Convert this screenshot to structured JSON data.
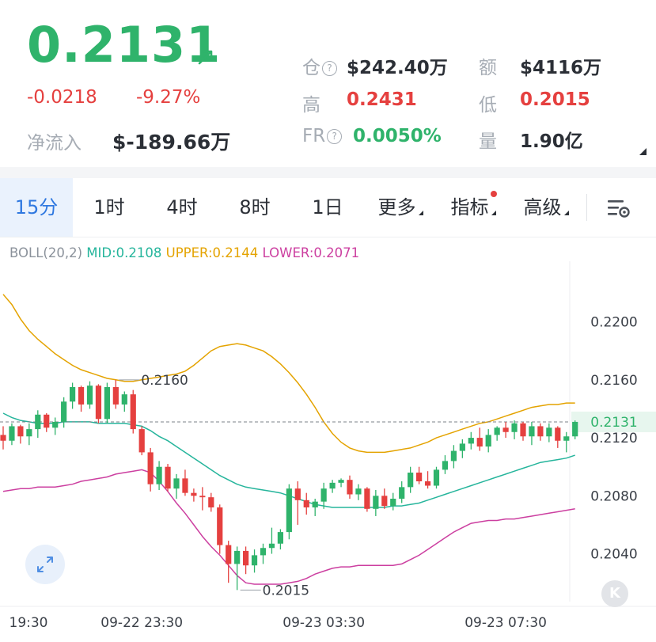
{
  "header": {
    "price": "0.2131",
    "change": "-0.0218",
    "change_pct": "-9.27%",
    "net_inflow_label": "净流入",
    "net_inflow_value": "$-189.66万",
    "open_interest_label": "仓",
    "open_interest_value": "$242.40万",
    "turnover_label": "额",
    "turnover_value": "$4116万",
    "high_label": "高",
    "high_value": "0.2431",
    "low_label": "低",
    "low_value": "0.2015",
    "funding_rate_label": "FR",
    "funding_rate_value": "0.0050%",
    "volume_label": "量",
    "volume_value": "1.90亿",
    "help_glyph": "?",
    "colors": {
      "up": "#2fb36b",
      "down": "#e5403f",
      "muted": "#a6acb4"
    }
  },
  "toolbar": {
    "intervals": [
      "15分",
      "1时",
      "4时",
      "8时",
      "1日"
    ],
    "active_index": 0,
    "more_label": "更多",
    "indicators_label": "指标",
    "advanced_label": "高级",
    "settings_icon": "chart-settings-icon"
  },
  "indicator": {
    "name": "BOLL(20,2)",
    "mid": "MID:0.2108",
    "upper": "UPPER:0.2144",
    "lower": "LOWER:0.2071"
  },
  "logo_text": "K",
  "chart_data": {
    "type": "candlestick",
    "y_ticks": [
      "0.2200",
      "0.2160",
      "0.2120",
      "0.2080",
      "0.2040"
    ],
    "y_tick_values": [
      0.22,
      0.216,
      0.212,
      0.208,
      0.204
    ],
    "ylim": [
      0.2007,
      0.2232
    ],
    "x_tick_labels": [
      "19:30",
      "09-22 23:30",
      "09-23 03:30",
      "09-23 07:30"
    ],
    "x_tick_index": [
      0,
      16,
      37,
      58
    ],
    "current_price_label": "0.2131",
    "current_price": 0.2131,
    "high_marker": {
      "label": "0.2160",
      "value": 0.216,
      "index": 13
    },
    "low_marker": {
      "label": "0.2015",
      "value": 0.2015,
      "index": 27
    },
    "candles_ohlc": [
      [
        0.2122,
        0.2128,
        0.2112,
        0.2118
      ],
      [
        0.2118,
        0.213,
        0.2115,
        0.2128
      ],
      [
        0.2128,
        0.2129,
        0.2116,
        0.2121
      ],
      [
        0.2121,
        0.213,
        0.2115,
        0.2126
      ],
      [
        0.2126,
        0.2139,
        0.212,
        0.2136
      ],
      [
        0.2136,
        0.2137,
        0.2124,
        0.2127
      ],
      [
        0.2127,
        0.2134,
        0.2122,
        0.2131
      ],
      [
        0.2131,
        0.2148,
        0.2127,
        0.2145
      ],
      [
        0.2145,
        0.2158,
        0.214,
        0.2155
      ],
      [
        0.2155,
        0.2156,
        0.2138,
        0.2143
      ],
      [
        0.2143,
        0.2159,
        0.214,
        0.2156
      ],
      [
        0.2156,
        0.2157,
        0.213,
        0.2133
      ],
      [
        0.2133,
        0.2158,
        0.213,
        0.2155
      ],
      [
        0.2155,
        0.216,
        0.214,
        0.2143
      ],
      [
        0.2143,
        0.2152,
        0.2138,
        0.215
      ],
      [
        0.215,
        0.2153,
        0.2123,
        0.2126
      ],
      [
        0.2126,
        0.2128,
        0.2108,
        0.211
      ],
      [
        0.211,
        0.2113,
        0.2083,
        0.2088
      ],
      [
        0.2088,
        0.2104,
        0.2084,
        0.21
      ],
      [
        0.21,
        0.2102,
        0.2083,
        0.2085
      ],
      [
        0.2085,
        0.2095,
        0.2078,
        0.2092
      ],
      [
        0.2092,
        0.2098,
        0.208,
        0.2082
      ],
      [
        0.2082,
        0.2085,
        0.2076,
        0.208
      ],
      [
        0.208,
        0.2086,
        0.207,
        0.2079
      ],
      [
        0.2079,
        0.2082,
        0.2069,
        0.2072
      ],
      [
        0.2072,
        0.2074,
        0.204,
        0.2046
      ],
      [
        0.2046,
        0.2049,
        0.202,
        0.2033
      ],
      [
        0.2033,
        0.2045,
        0.2015,
        0.2042
      ],
      [
        0.2042,
        0.2045,
        0.2026,
        0.2032
      ],
      [
        0.2032,
        0.2043,
        0.2027,
        0.2039
      ],
      [
        0.2039,
        0.2047,
        0.2033,
        0.2044
      ],
      [
        0.2044,
        0.2058,
        0.204,
        0.2047
      ],
      [
        0.2047,
        0.2057,
        0.2043,
        0.2055
      ],
      [
        0.2055,
        0.2088,
        0.205,
        0.2085
      ],
      [
        0.2085,
        0.209,
        0.206,
        0.2077
      ],
      [
        0.2077,
        0.2082,
        0.2067,
        0.2072
      ],
      [
        0.2072,
        0.2078,
        0.2066,
        0.2076
      ],
      [
        0.2076,
        0.2089,
        0.2071,
        0.2085
      ],
      [
        0.2085,
        0.2091,
        0.2082,
        0.2089
      ],
      [
        0.2089,
        0.2092,
        0.2086,
        0.2091
      ],
      [
        0.2091,
        0.2094,
        0.2078,
        0.2081
      ],
      [
        0.2081,
        0.2088,
        0.2077,
        0.2085
      ],
      [
        0.2085,
        0.2086,
        0.2069,
        0.2071
      ],
      [
        0.2071,
        0.2084,
        0.2066,
        0.208
      ],
      [
        0.208,
        0.2085,
        0.2071,
        0.2073
      ],
      [
        0.2073,
        0.2082,
        0.207,
        0.2078
      ],
      [
        0.2078,
        0.209,
        0.2075,
        0.2086
      ],
      [
        0.2086,
        0.21,
        0.2082,
        0.2096
      ],
      [
        0.2096,
        0.21,
        0.2088,
        0.209
      ],
      [
        0.209,
        0.2097,
        0.2085,
        0.2087
      ],
      [
        0.2087,
        0.21,
        0.2085,
        0.2098
      ],
      [
        0.2098,
        0.2108,
        0.2095,
        0.2104
      ],
      [
        0.2104,
        0.2115,
        0.2099,
        0.2111
      ],
      [
        0.2111,
        0.2119,
        0.2106,
        0.2116
      ],
      [
        0.2116,
        0.2124,
        0.2112,
        0.212
      ],
      [
        0.212,
        0.2127,
        0.2111,
        0.2114
      ],
      [
        0.2114,
        0.2126,
        0.211,
        0.2122
      ],
      [
        0.2122,
        0.2128,
        0.2118,
        0.2127
      ],
      [
        0.2127,
        0.2131,
        0.212,
        0.2124
      ],
      [
        0.2124,
        0.2132,
        0.2119,
        0.213
      ],
      [
        0.213,
        0.2131,
        0.2118,
        0.2121
      ],
      [
        0.2121,
        0.2131,
        0.2115,
        0.2128
      ],
      [
        0.2128,
        0.213,
        0.2118,
        0.2121
      ],
      [
        0.2121,
        0.213,
        0.2117,
        0.2127
      ],
      [
        0.2127,
        0.2128,
        0.2113,
        0.2118
      ],
      [
        0.2118,
        0.2124,
        0.211,
        0.2121
      ],
      [
        0.2121,
        0.2132,
        0.2119,
        0.2131
      ]
    ],
    "boll_upper": [
      0.2219,
      0.2212,
      0.2202,
      0.2194,
      0.2188,
      0.2183,
      0.2178,
      0.2174,
      0.217,
      0.2167,
      0.2165,
      0.2163,
      0.2161,
      0.216,
      0.2159,
      0.2159,
      0.216,
      0.2161,
      0.2162,
      0.2163,
      0.2164,
      0.2166,
      0.217,
      0.2175,
      0.218,
      0.2183,
      0.2184,
      0.2185,
      0.2184,
      0.2182,
      0.218,
      0.2176,
      0.2171,
      0.2165,
      0.2158,
      0.215,
      0.2141,
      0.2131,
      0.2123,
      0.2117,
      0.2113,
      0.2111,
      0.211,
      0.211,
      0.211,
      0.2111,
      0.2112,
      0.2113,
      0.2115,
      0.2117,
      0.212,
      0.2122,
      0.2124,
      0.2126,
      0.2128,
      0.213,
      0.2131,
      0.2133,
      0.2135,
      0.2137,
      0.2139,
      0.2141,
      0.2142,
      0.2143,
      0.2143,
      0.2144,
      0.2144
    ],
    "boll_mid": [
      0.2137,
      0.2134,
      0.2132,
      0.2131,
      0.213,
      0.213,
      0.213,
      0.2131,
      0.2131,
      0.2131,
      0.2131,
      0.213,
      0.213,
      0.213,
      0.213,
      0.2129,
      0.2128,
      0.2125,
      0.2121,
      0.2118,
      0.2114,
      0.211,
      0.2106,
      0.2102,
      0.2098,
      0.2094,
      0.2091,
      0.2088,
      0.2086,
      0.2085,
      0.2084,
      0.2083,
      0.2082,
      0.208,
      0.2078,
      0.2076,
      0.2074,
      0.2073,
      0.2072,
      0.2072,
      0.2072,
      0.2072,
      0.2072,
      0.2072,
      0.2072,
      0.2073,
      0.2073,
      0.2074,
      0.2075,
      0.2077,
      0.2079,
      0.2081,
      0.2083,
      0.2085,
      0.2087,
      0.2089,
      0.2091,
      0.2093,
      0.2095,
      0.2097,
      0.2099,
      0.2101,
      0.2103,
      0.2104,
      0.2105,
      0.2106,
      0.2108
    ],
    "boll_lower": [
      0.2083,
      0.2084,
      0.2085,
      0.2085,
      0.2086,
      0.2086,
      0.2086,
      0.2087,
      0.2088,
      0.209,
      0.2091,
      0.2092,
      0.2093,
      0.2095,
      0.2096,
      0.2097,
      0.2098,
      0.2096,
      0.209,
      0.2083,
      0.2075,
      0.2068,
      0.206,
      0.2052,
      0.2045,
      0.2039,
      0.2032,
      0.2025,
      0.202,
      0.2019,
      0.2019,
      0.2019,
      0.2019,
      0.202,
      0.2021,
      0.2023,
      0.2026,
      0.2028,
      0.203,
      0.2031,
      0.2031,
      0.2032,
      0.2032,
      0.2032,
      0.2032,
      0.2032,
      0.2033,
      0.2036,
      0.2039,
      0.2043,
      0.2047,
      0.2051,
      0.2055,
      0.2058,
      0.2061,
      0.2062,
      0.2063,
      0.2063,
      0.2064,
      0.2064,
      0.2065,
      0.2066,
      0.2067,
      0.2068,
      0.2069,
      0.207,
      0.2071
    ]
  }
}
